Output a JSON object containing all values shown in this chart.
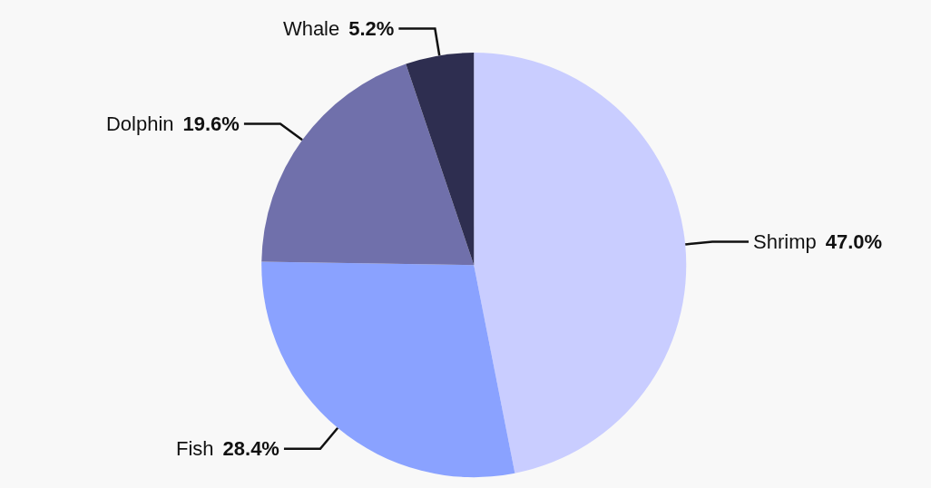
{
  "chart_data": {
    "type": "pie",
    "categories": [
      "Shrimp",
      "Fish",
      "Dolphin",
      "Whale"
    ],
    "values": [
      47.0,
      28.4,
      19.6,
      5.2
    ],
    "colors": [
      "#c9cdff",
      "#8aa2ff",
      "#7070ab",
      "#2e2e50"
    ],
    "value_labels": [
      "47.0%",
      "28.4%",
      "19.6%",
      "5.2%"
    ],
    "legend": false
  }
}
